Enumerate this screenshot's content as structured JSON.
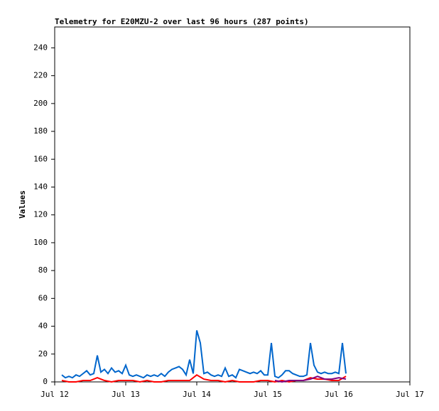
{
  "chart_data": {
    "type": "line",
    "title": "Telemetry for E20MZU-2 over last 96 hours (287 points)",
    "ylabel": "Values",
    "xlim": [
      0,
      5
    ],
    "xticks": [
      {
        "value": 0,
        "label": "Jul 12"
      },
      {
        "value": 1,
        "label": "Jul 13"
      },
      {
        "value": 2,
        "label": "Jul 14"
      },
      {
        "value": 3,
        "label": "Jul 15"
      },
      {
        "value": 4,
        "label": "Jul 16"
      },
      {
        "value": 5,
        "label": "Jul 17"
      }
    ],
    "ylim": [
      0,
      255
    ],
    "yticks": [
      0,
      20,
      40,
      60,
      80,
      100,
      120,
      140,
      160,
      180,
      200,
      220,
      240
    ],
    "series": [
      {
        "color": "#0066cc",
        "x": [
          0.1,
          0.15,
          0.2,
          0.25,
          0.3,
          0.35,
          0.4,
          0.45,
          0.5,
          0.55,
          0.6,
          0.65,
          0.7,
          0.75,
          0.8,
          0.85,
          0.9,
          0.95,
          1.0,
          1.05,
          1.1,
          1.15,
          1.2,
          1.25,
          1.3,
          1.35,
          1.4,
          1.45,
          1.5,
          1.55,
          1.6,
          1.65,
          1.7,
          1.75,
          1.8,
          1.85,
          1.9,
          1.95,
          2.0,
          2.05,
          2.1,
          2.15,
          2.2,
          2.25,
          2.3,
          2.35,
          2.4,
          2.45,
          2.5,
          2.55,
          2.6,
          2.65,
          2.7,
          2.75,
          2.8,
          2.85,
          2.9,
          2.95,
          3.0,
          3.05,
          3.1,
          3.15,
          3.2,
          3.25,
          3.3,
          3.35,
          3.4,
          3.45,
          3.5,
          3.55,
          3.6,
          3.65,
          3.7,
          3.75,
          3.8,
          3.85,
          3.9,
          3.95,
          4.0,
          4.05,
          4.1
        ],
        "values": [
          5,
          3,
          4,
          3,
          5,
          4,
          6,
          8,
          5,
          6,
          19,
          7,
          9,
          6,
          10,
          7,
          8,
          6,
          12,
          5,
          4,
          5,
          4,
          3,
          5,
          4,
          5,
          4,
          6,
          4,
          7,
          9,
          10,
          11,
          9,
          5,
          16,
          6,
          37,
          28,
          6,
          7,
          5,
          4,
          5,
          4,
          10,
          4,
          5,
          3,
          9,
          8,
          7,
          6,
          7,
          6,
          8,
          5,
          5,
          28,
          4,
          3,
          5,
          8,
          8,
          6,
          5,
          4,
          4,
          5,
          28,
          12,
          7,
          6,
          7,
          6,
          6,
          7,
          6,
          28,
          6
        ]
      },
      {
        "color": "#ff0000",
        "x": [
          0.1,
          0.2,
          0.3,
          0.4,
          0.5,
          0.6,
          0.7,
          0.8,
          0.9,
          1.0,
          1.1,
          1.2,
          1.3,
          1.4,
          1.5,
          1.6,
          1.7,
          1.8,
          1.9,
          2.0,
          2.1,
          2.2,
          2.3,
          2.4,
          2.5,
          2.6,
          2.7,
          2.8,
          2.9,
          3.0,
          3.1,
          3.2,
          3.3,
          3.4,
          3.5,
          3.6,
          3.7,
          3.8,
          3.9,
          4.0,
          4.1
        ],
        "values": [
          1,
          0,
          0,
          1,
          1,
          3,
          1,
          0,
          1,
          1,
          1,
          0,
          1,
          0,
          0,
          1,
          1,
          1,
          1,
          5,
          2,
          1,
          1,
          0,
          1,
          0,
          0,
          0,
          1,
          1,
          0,
          1,
          0,
          1,
          1,
          3,
          2,
          2,
          1,
          1,
          4
        ]
      },
      {
        "color": "#800080",
        "x": [
          3.1,
          3.2,
          3.3,
          3.4,
          3.5,
          3.6,
          3.7,
          3.8,
          3.9,
          4.0,
          4.1
        ],
        "values": [
          1,
          0,
          1,
          1,
          1,
          2,
          4,
          2,
          2,
          3,
          2
        ]
      }
    ]
  }
}
